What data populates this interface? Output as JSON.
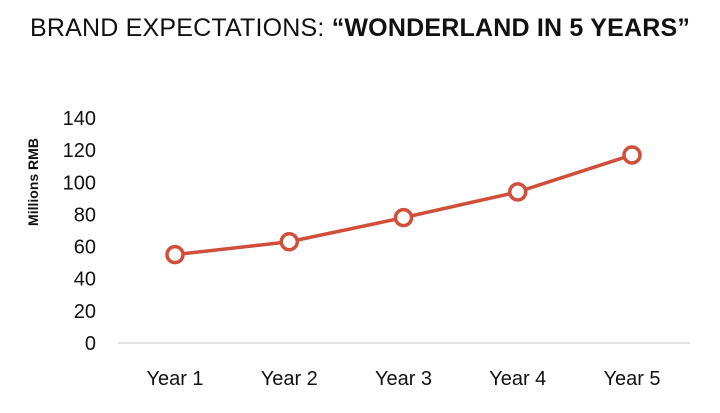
{
  "chart_data": {
    "type": "line",
    "title_plain": "BRAND EXPECTATIONS: ",
    "title_bold": "“WONDERLAND IN 5 YEARS”",
    "xlabel": "",
    "ylabel": "Millions RMB",
    "categories": [
      "Year 1",
      "Year 2",
      "Year 3",
      "Year 4",
      "Year 5"
    ],
    "series": [
      {
        "values": [
          55,
          63,
          78,
          94,
          117
        ],
        "color": "#cf4f3b"
      }
    ],
    "ylim": [
      0,
      140
    ],
    "yticks": [
      0,
      20,
      40,
      60,
      80,
      100,
      120,
      140
    ],
    "grid": false,
    "legend": "none",
    "marker": "hollow-circle",
    "axis_color": "#d9d9d9"
  }
}
